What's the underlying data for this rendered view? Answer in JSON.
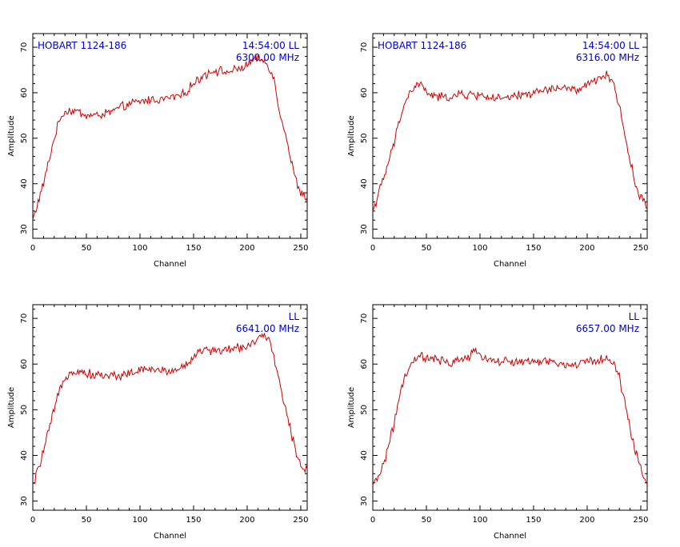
{
  "colors": {
    "trace": "#cc0000",
    "annotation": "#0000cc",
    "axes": "#000000",
    "background": "#ffffff"
  },
  "chart_data": [
    {
      "type": "line",
      "xlabel": "Channel",
      "ylabel": "Amplitude",
      "xlim": [
        0,
        256
      ],
      "ylim": [
        28,
        73
      ],
      "xticks": [
        0,
        50,
        100,
        150,
        200,
        250
      ],
      "yticks": [
        30,
        40,
        50,
        60,
        70
      ],
      "grid": false,
      "annotations": {
        "source": "HOBART 1124-186",
        "time_pol": "14:54:00  LL",
        "freq": "6300.00 MHz"
      },
      "series": [
        {
          "x": [
            0,
            10,
            20,
            25,
            30,
            40,
            50,
            60,
            70,
            80,
            90,
            100,
            110,
            120,
            130,
            140,
            150,
            160,
            170,
            180,
            190,
            200,
            205,
            210,
            215,
            220,
            225,
            230,
            235,
            240,
            245,
            250,
            255
          ],
          "y": [
            32,
            40,
            50,
            54,
            56,
            56,
            55,
            55,
            55.5,
            56.5,
            57.5,
            58,
            58.5,
            58.5,
            59,
            59.5,
            62,
            64,
            65,
            64.5,
            65,
            66,
            67,
            67.5,
            67,
            66,
            63,
            56,
            52,
            46,
            41,
            38,
            37
          ]
        }
      ]
    },
    {
      "type": "line",
      "xlabel": "Channel",
      "ylabel": "Amplitude",
      "xlim": [
        0,
        256
      ],
      "ylim": [
        28,
        73
      ],
      "xticks": [
        0,
        50,
        100,
        150,
        200,
        250
      ],
      "yticks": [
        30,
        40,
        50,
        60,
        70
      ],
      "grid": false,
      "annotations": {
        "source": "HOBART 1124-186",
        "time_pol": "14:54:00  LL",
        "freq": "6316.00 MHz"
      },
      "series": [
        {
          "x": [
            0,
            10,
            20,
            25,
            30,
            35,
            40,
            45,
            50,
            60,
            70,
            80,
            90,
            100,
            110,
            120,
            130,
            140,
            150,
            160,
            170,
            180,
            190,
            200,
            210,
            215,
            220,
            225,
            230,
            235,
            240,
            245,
            250,
            255
          ],
          "y": [
            34,
            41,
            49,
            54,
            58,
            60,
            61.5,
            62,
            60,
            59,
            59,
            59.5,
            59.5,
            59.5,
            59,
            58.5,
            59,
            59.5,
            60,
            60.5,
            61,
            61,
            60.5,
            61.5,
            63,
            64,
            63.5,
            62,
            57,
            51,
            45,
            40,
            37,
            35
          ]
        }
      ]
    },
    {
      "type": "line",
      "xlabel": "Channel",
      "ylabel": "Amplitude",
      "xlim": [
        0,
        256
      ],
      "ylim": [
        28,
        73
      ],
      "xticks": [
        0,
        50,
        100,
        150,
        200,
        250
      ],
      "yticks": [
        30,
        40,
        50,
        60,
        70
      ],
      "grid": false,
      "annotations": {
        "source": "",
        "time_pol": "LL",
        "freq": "6641.00 MHz"
      },
      "series": [
        {
          "x": [
            0,
            10,
            20,
            25,
            30,
            35,
            40,
            50,
            60,
            70,
            80,
            90,
            100,
            110,
            120,
            130,
            140,
            145,
            150,
            160,
            170,
            180,
            190,
            200,
            210,
            215,
            220,
            225,
            230,
            235,
            240,
            245,
            250,
            255
          ],
          "y": [
            33,
            41,
            50,
            54,
            57,
            58.5,
            58.5,
            58,
            57.5,
            57.5,
            57.5,
            58,
            58.5,
            59,
            58.5,
            58.5,
            59.5,
            60,
            62,
            63,
            63,
            63,
            63.5,
            64,
            65.5,
            66,
            65,
            62,
            56,
            51,
            46,
            41,
            38,
            37
          ]
        }
      ]
    },
    {
      "type": "line",
      "xlabel": "Channel",
      "ylabel": "Amplitude",
      "xlim": [
        0,
        256
      ],
      "ylim": [
        28,
        73
      ],
      "xticks": [
        0,
        50,
        100,
        150,
        200,
        250
      ],
      "yticks": [
        30,
        40,
        50,
        60,
        70
      ],
      "grid": false,
      "annotations": {
        "source": "",
        "time_pol": "LL",
        "freq": "6657.00 MHz"
      },
      "series": [
        {
          "x": [
            0,
            10,
            20,
            25,
            30,
            35,
            40,
            45,
            50,
            60,
            70,
            80,
            90,
            95,
            100,
            110,
            120,
            130,
            140,
            150,
            160,
            170,
            180,
            190,
            200,
            210,
            220,
            225,
            230,
            235,
            240,
            245,
            250,
            255
          ],
          "y": [
            33,
            38,
            47,
            53,
            57,
            59.5,
            61,
            62,
            61,
            61,
            60,
            61,
            61.5,
            62.5,
            62,
            61,
            60.5,
            60.5,
            60.5,
            60.5,
            60.5,
            60.5,
            59.5,
            60,
            60.5,
            61,
            61,
            60,
            57,
            52,
            46,
            41,
            37,
            34
          ]
        }
      ]
    }
  ]
}
